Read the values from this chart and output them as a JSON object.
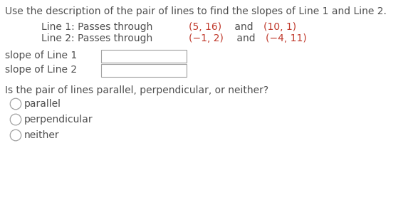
{
  "bg_color": "#ffffff",
  "title_text": "Use the description of the pair of lines to find the slopes of Line 1 and Line 2.",
  "normal_color": "#505050",
  "coords_color": "#c0392b",
  "slope1_label": "slope of Line 1",
  "slope2_label": "slope of Line 2",
  "question_text": "Is the pair of lines parallel, perpendicular, or neither?",
  "option1": "parallel",
  "option2": "perpendicular",
  "option3": "neither",
  "box_edge_color": "#a0a0a0",
  "circle_edge_color": "#a0a0a0",
  "body_fontsize": 10.0,
  "line1_parts": [
    "Line 1: Passes through ",
    "(5, 16)",
    " and ",
    "(10, 1)"
  ],
  "line2_parts": [
    "Line 2: Passes through ",
    "(−1, 2)",
    " and ",
    "(−4, 11)"
  ],
  "line1_colors": [
    "normal",
    "coords",
    "normal",
    "coords"
  ],
  "line2_colors": [
    "normal",
    "coords",
    "normal",
    "coords"
  ]
}
